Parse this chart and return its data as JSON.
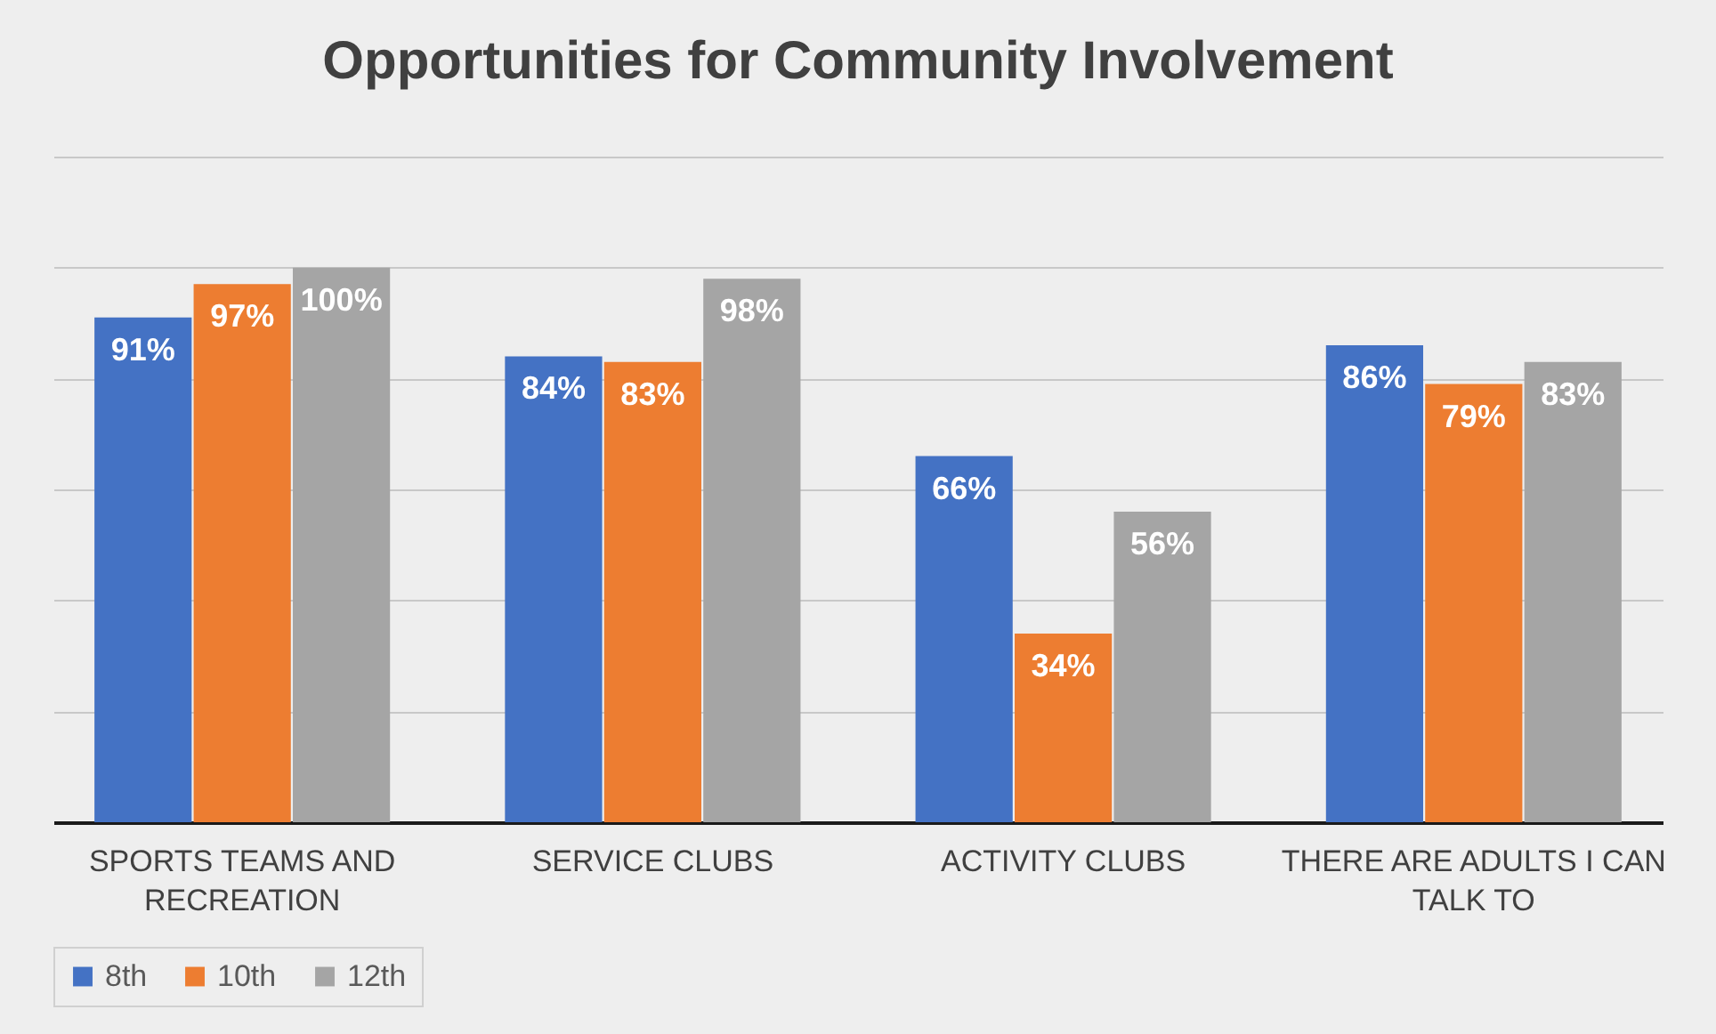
{
  "chart_data": {
    "type": "bar",
    "title": "Opportunities for Community Involvement",
    "categories": [
      "SPORTS TEAMS AND RECREATION",
      "SERVICE CLUBS",
      "ACTIVITY CLUBS",
      "THERE ARE ADULTS I CAN TALK TO"
    ],
    "series": [
      {
        "name": "8th",
        "color": "#4472c4",
        "values": [
          91,
          84,
          66,
          86
        ],
        "value_labels": [
          "91%",
          "84%",
          "66%",
          "86%"
        ]
      },
      {
        "name": "10th",
        "color": "#ed7d31",
        "values": [
          97,
          83,
          34,
          79
        ],
        "value_labels": [
          "97%",
          "83%",
          "34%",
          "79%"
        ]
      },
      {
        "name": "12th",
        "color": "#a5a5a5",
        "values": [
          100,
          98,
          56,
          83
        ],
        "value_labels": [
          "100%",
          "98%",
          "56%",
          "83%"
        ]
      }
    ],
    "ylim": [
      0,
      120
    ],
    "yticks": [
      {
        "value": 0,
        "label": null
      },
      {
        "value": 20,
        "label": null
      },
      {
        "value": 40,
        "label": null
      },
      {
        "value": 60,
        "label": null
      },
      {
        "value": 80,
        "label": null
      },
      {
        "value": 100,
        "label": null
      },
      {
        "value": 120,
        "label": null
      }
    ],
    "tick_labels": "x",
    "grid": "y",
    "legend": "bottom"
  }
}
